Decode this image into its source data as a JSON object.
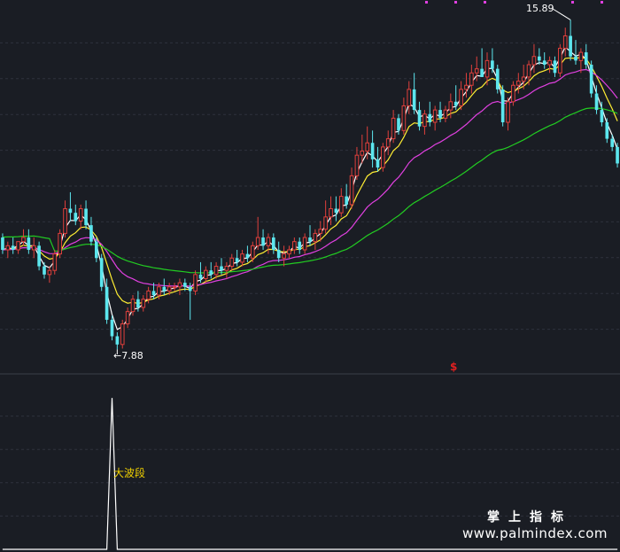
{
  "annotations": {
    "low_label": "←7.88",
    "high_label": "15.89",
    "bigwave_label": "大波段",
    "signal_mark": "$"
  },
  "watermark": {
    "title": "掌上指标",
    "url": "www.palmindex.com"
  },
  "chart_data": [
    {
      "type": "candlestick",
      "title": "",
      "ylim": [
        7.5,
        16.2
      ],
      "grid": true,
      "colors": {
        "up": "#e0403c",
        "down": "#5ce6ee",
        "ma_short": "#ffffff",
        "ma_mid": "#ffee33",
        "ma_long": "#e040e0",
        "ma_slow": "#22cc22"
      },
      "low_point": {
        "index": 22,
        "value": 7.88
      },
      "high_point": {
        "index": 109,
        "value": 15.89
      },
      "ohlc": [
        [
          10.6,
          10.7,
          10.2,
          10.3
        ],
        [
          10.3,
          10.5,
          10.1,
          10.4
        ],
        [
          10.4,
          10.6,
          10.2,
          10.3
        ],
        [
          10.3,
          10.5,
          10.2,
          10.5
        ],
        [
          10.5,
          10.8,
          10.4,
          10.6
        ],
        [
          10.6,
          10.8,
          10.2,
          10.3
        ],
        [
          10.3,
          10.6,
          10.1,
          10.4
        ],
        [
          10.4,
          10.5,
          9.8,
          9.9
        ],
        [
          9.9,
          10.0,
          9.6,
          9.7
        ],
        [
          9.7,
          9.9,
          9.5,
          9.8
        ],
        [
          9.8,
          10.3,
          9.7,
          10.2
        ],
        [
          10.2,
          10.8,
          10.1,
          10.7
        ],
        [
          10.7,
          11.5,
          10.6,
          11.3
        ],
        [
          11.3,
          11.7,
          11.0,
          11.2
        ],
        [
          11.2,
          11.4,
          10.9,
          11.0
        ],
        [
          11.0,
          11.4,
          10.8,
          11.3
        ],
        [
          11.3,
          11.5,
          10.8,
          10.9
        ],
        [
          10.9,
          11.1,
          10.4,
          10.5
        ],
        [
          10.5,
          10.6,
          10.0,
          10.1
        ],
        [
          10.1,
          10.2,
          9.3,
          9.4
        ],
        [
          9.4,
          9.6,
          8.5,
          8.6
        ],
        [
          8.6,
          8.7,
          8.1,
          8.2
        ],
        [
          8.2,
          8.3,
          7.88,
          8.0
        ],
        [
          8.0,
          8.6,
          7.9,
          8.5
        ],
        [
          8.5,
          8.9,
          8.4,
          8.8
        ],
        [
          8.8,
          9.2,
          8.7,
          9.1
        ],
        [
          9.1,
          9.3,
          8.8,
          8.9
        ],
        [
          8.9,
          9.2,
          8.8,
          9.1
        ],
        [
          9.1,
          9.4,
          9.0,
          9.3
        ],
        [
          9.3,
          9.5,
          9.1,
          9.2
        ],
        [
          9.2,
          9.5,
          9.1,
          9.4
        ],
        [
          9.4,
          9.6,
          9.2,
          9.3
        ],
        [
          9.3,
          9.5,
          9.2,
          9.4
        ],
        [
          9.4,
          9.5,
          9.3,
          9.4
        ],
        [
          9.4,
          9.6,
          9.2,
          9.5
        ],
        [
          9.5,
          9.6,
          9.3,
          9.4
        ],
        [
          9.4,
          9.5,
          8.6,
          9.3
        ],
        [
          9.3,
          9.8,
          9.2,
          9.7
        ],
        [
          9.7,
          10.0,
          9.5,
          9.6
        ],
        [
          9.6,
          9.9,
          9.5,
          9.8
        ],
        [
          9.8,
          10.0,
          9.6,
          9.7
        ],
        [
          9.7,
          10.0,
          9.6,
          9.9
        ],
        [
          9.9,
          10.1,
          9.7,
          9.8
        ],
        [
          9.8,
          10.0,
          9.6,
          9.9
        ],
        [
          9.9,
          10.2,
          9.8,
          10.1
        ],
        [
          10.1,
          10.3,
          9.9,
          10.0
        ],
        [
          10.0,
          10.3,
          9.9,
          10.2
        ],
        [
          10.2,
          10.4,
          10.0,
          10.1
        ],
        [
          10.1,
          10.5,
          10.0,
          10.4
        ],
        [
          10.4,
          11.1,
          10.3,
          10.6
        ],
        [
          10.6,
          10.8,
          10.3,
          10.4
        ],
        [
          10.4,
          10.7,
          10.2,
          10.6
        ],
        [
          10.6,
          10.7,
          10.2,
          10.3
        ],
        [
          10.3,
          10.5,
          10.0,
          10.1
        ],
        [
          10.1,
          10.4,
          9.9,
          10.2
        ],
        [
          10.2,
          10.4,
          10.1,
          10.3
        ],
        [
          10.3,
          10.6,
          10.2,
          10.5
        ],
        [
          10.5,
          10.6,
          10.2,
          10.3
        ],
        [
          10.3,
          10.7,
          10.2,
          10.6
        ],
        [
          10.6,
          10.9,
          10.4,
          10.5
        ],
        [
          10.5,
          10.8,
          10.3,
          10.7
        ],
        [
          10.7,
          11.0,
          10.5,
          10.8
        ],
        [
          10.8,
          11.5,
          10.7,
          11.1
        ],
        [
          11.1,
          11.6,
          10.9,
          11.3
        ],
        [
          11.3,
          11.6,
          11.0,
          11.2
        ],
        [
          11.2,
          11.8,
          11.1,
          11.6
        ],
        [
          11.6,
          11.9,
          11.3,
          11.4
        ],
        [
          11.4,
          12.3,
          11.3,
          12.1
        ],
        [
          12.1,
          12.8,
          12.0,
          12.6
        ],
        [
          12.6,
          13.1,
          12.4,
          12.7
        ],
        [
          12.7,
          13.3,
          12.5,
          12.9
        ],
        [
          12.9,
          13.2,
          12.3,
          12.5
        ],
        [
          12.5,
          12.8,
          12.2,
          12.3
        ],
        [
          12.3,
          12.9,
          12.2,
          12.8
        ],
        [
          12.8,
          13.2,
          12.6,
          13.0
        ],
        [
          13.0,
          13.7,
          12.9,
          13.5
        ],
        [
          13.5,
          13.6,
          13.1,
          13.2
        ],
        [
          13.2,
          14.0,
          13.1,
          13.8
        ],
        [
          13.8,
          14.4,
          13.6,
          14.2
        ],
        [
          14.2,
          14.6,
          13.6,
          13.7
        ],
        [
          13.7,
          13.9,
          13.2,
          13.3
        ],
        [
          13.3,
          13.7,
          13.1,
          13.6
        ],
        [
          13.6,
          13.9,
          13.3,
          13.4
        ],
        [
          13.4,
          13.8,
          13.2,
          13.7
        ],
        [
          13.7,
          13.9,
          13.4,
          13.5
        ],
        [
          13.5,
          13.8,
          13.4,
          13.7
        ],
        [
          13.7,
          14.1,
          13.5,
          13.9
        ],
        [
          13.9,
          14.3,
          13.7,
          13.8
        ],
        [
          13.8,
          14.4,
          13.7,
          14.2
        ],
        [
          14.2,
          14.6,
          14.0,
          14.3
        ],
        [
          14.3,
          14.8,
          14.1,
          14.6
        ],
        [
          14.6,
          15.0,
          14.4,
          14.7
        ],
        [
          14.7,
          15.2,
          14.5,
          14.5
        ],
        [
          14.5,
          15.1,
          14.3,
          14.9
        ],
        [
          14.9,
          15.2,
          14.6,
          14.7
        ],
        [
          14.7,
          14.8,
          14.1,
          14.2
        ],
        [
          14.2,
          14.3,
          13.3,
          13.4
        ],
        [
          13.4,
          14.0,
          13.2,
          13.9
        ],
        [
          13.9,
          14.4,
          13.8,
          14.3
        ],
        [
          14.3,
          14.6,
          14.1,
          14.4
        ],
        [
          14.4,
          14.8,
          14.2,
          14.5
        ],
        [
          14.5,
          14.9,
          14.3,
          14.8
        ],
        [
          14.8,
          15.3,
          14.6,
          15.0
        ],
        [
          15.0,
          15.2,
          14.8,
          14.9
        ],
        [
          14.9,
          15.1,
          14.7,
          14.8
        ],
        [
          14.8,
          15.0,
          14.6,
          14.9
        ],
        [
          14.9,
          15.0,
          14.5,
          14.6
        ],
        [
          14.6,
          15.3,
          14.5,
          15.2
        ],
        [
          15.2,
          15.7,
          15.0,
          15.5
        ],
        [
          15.5,
          15.89,
          14.9,
          15.0
        ],
        [
          15.0,
          15.4,
          14.8,
          14.9
        ],
        [
          14.9,
          15.2,
          14.6,
          15.1
        ],
        [
          15.1,
          15.3,
          14.7,
          14.8
        ],
        [
          14.8,
          14.9,
          14.0,
          14.1
        ],
        [
          14.1,
          14.3,
          13.6,
          13.7
        ],
        [
          13.7,
          13.9,
          13.3,
          13.4
        ],
        [
          13.4,
          13.5,
          12.9,
          13.0
        ],
        [
          13.0,
          13.1,
          12.7,
          12.8
        ],
        [
          12.8,
          12.9,
          12.3,
          12.4
        ]
      ]
    },
    {
      "type": "line",
      "title": "",
      "series": [
        {
          "values": [
            0,
            0,
            0,
            0,
            0,
            0,
            0,
            0,
            0,
            0,
            0,
            0,
            0,
            0,
            0,
            0,
            0,
            0,
            0,
            0,
            0,
            1,
            0,
            0,
            0,
            0,
            0,
            0,
            0,
            0,
            0,
            0,
            0,
            0,
            0,
            0,
            0,
            0,
            0,
            0,
            0,
            0,
            0,
            0,
            0,
            0,
            0,
            0,
            0,
            0,
            0,
            0,
            0,
            0,
            0,
            0,
            0,
            0,
            0,
            0,
            0,
            0,
            0,
            0,
            0,
            0,
            0,
            0,
            0,
            0,
            0,
            0,
            0,
            0,
            0,
            0,
            0,
            0,
            0,
            0,
            0,
            0,
            0,
            0,
            0,
            0,
            0,
            0,
            0,
            0,
            0,
            0,
            0,
            0,
            0,
            0,
            0,
            0,
            0,
            0,
            0,
            0,
            0,
            0,
            0,
            0,
            0,
            0,
            0,
            0,
            0,
            0,
            0,
            0,
            0,
            0,
            0,
            0,
            0
          ]
        }
      ],
      "ylim": [
        0,
        1.1
      ],
      "grid": true,
      "color": "#ffffff"
    }
  ]
}
